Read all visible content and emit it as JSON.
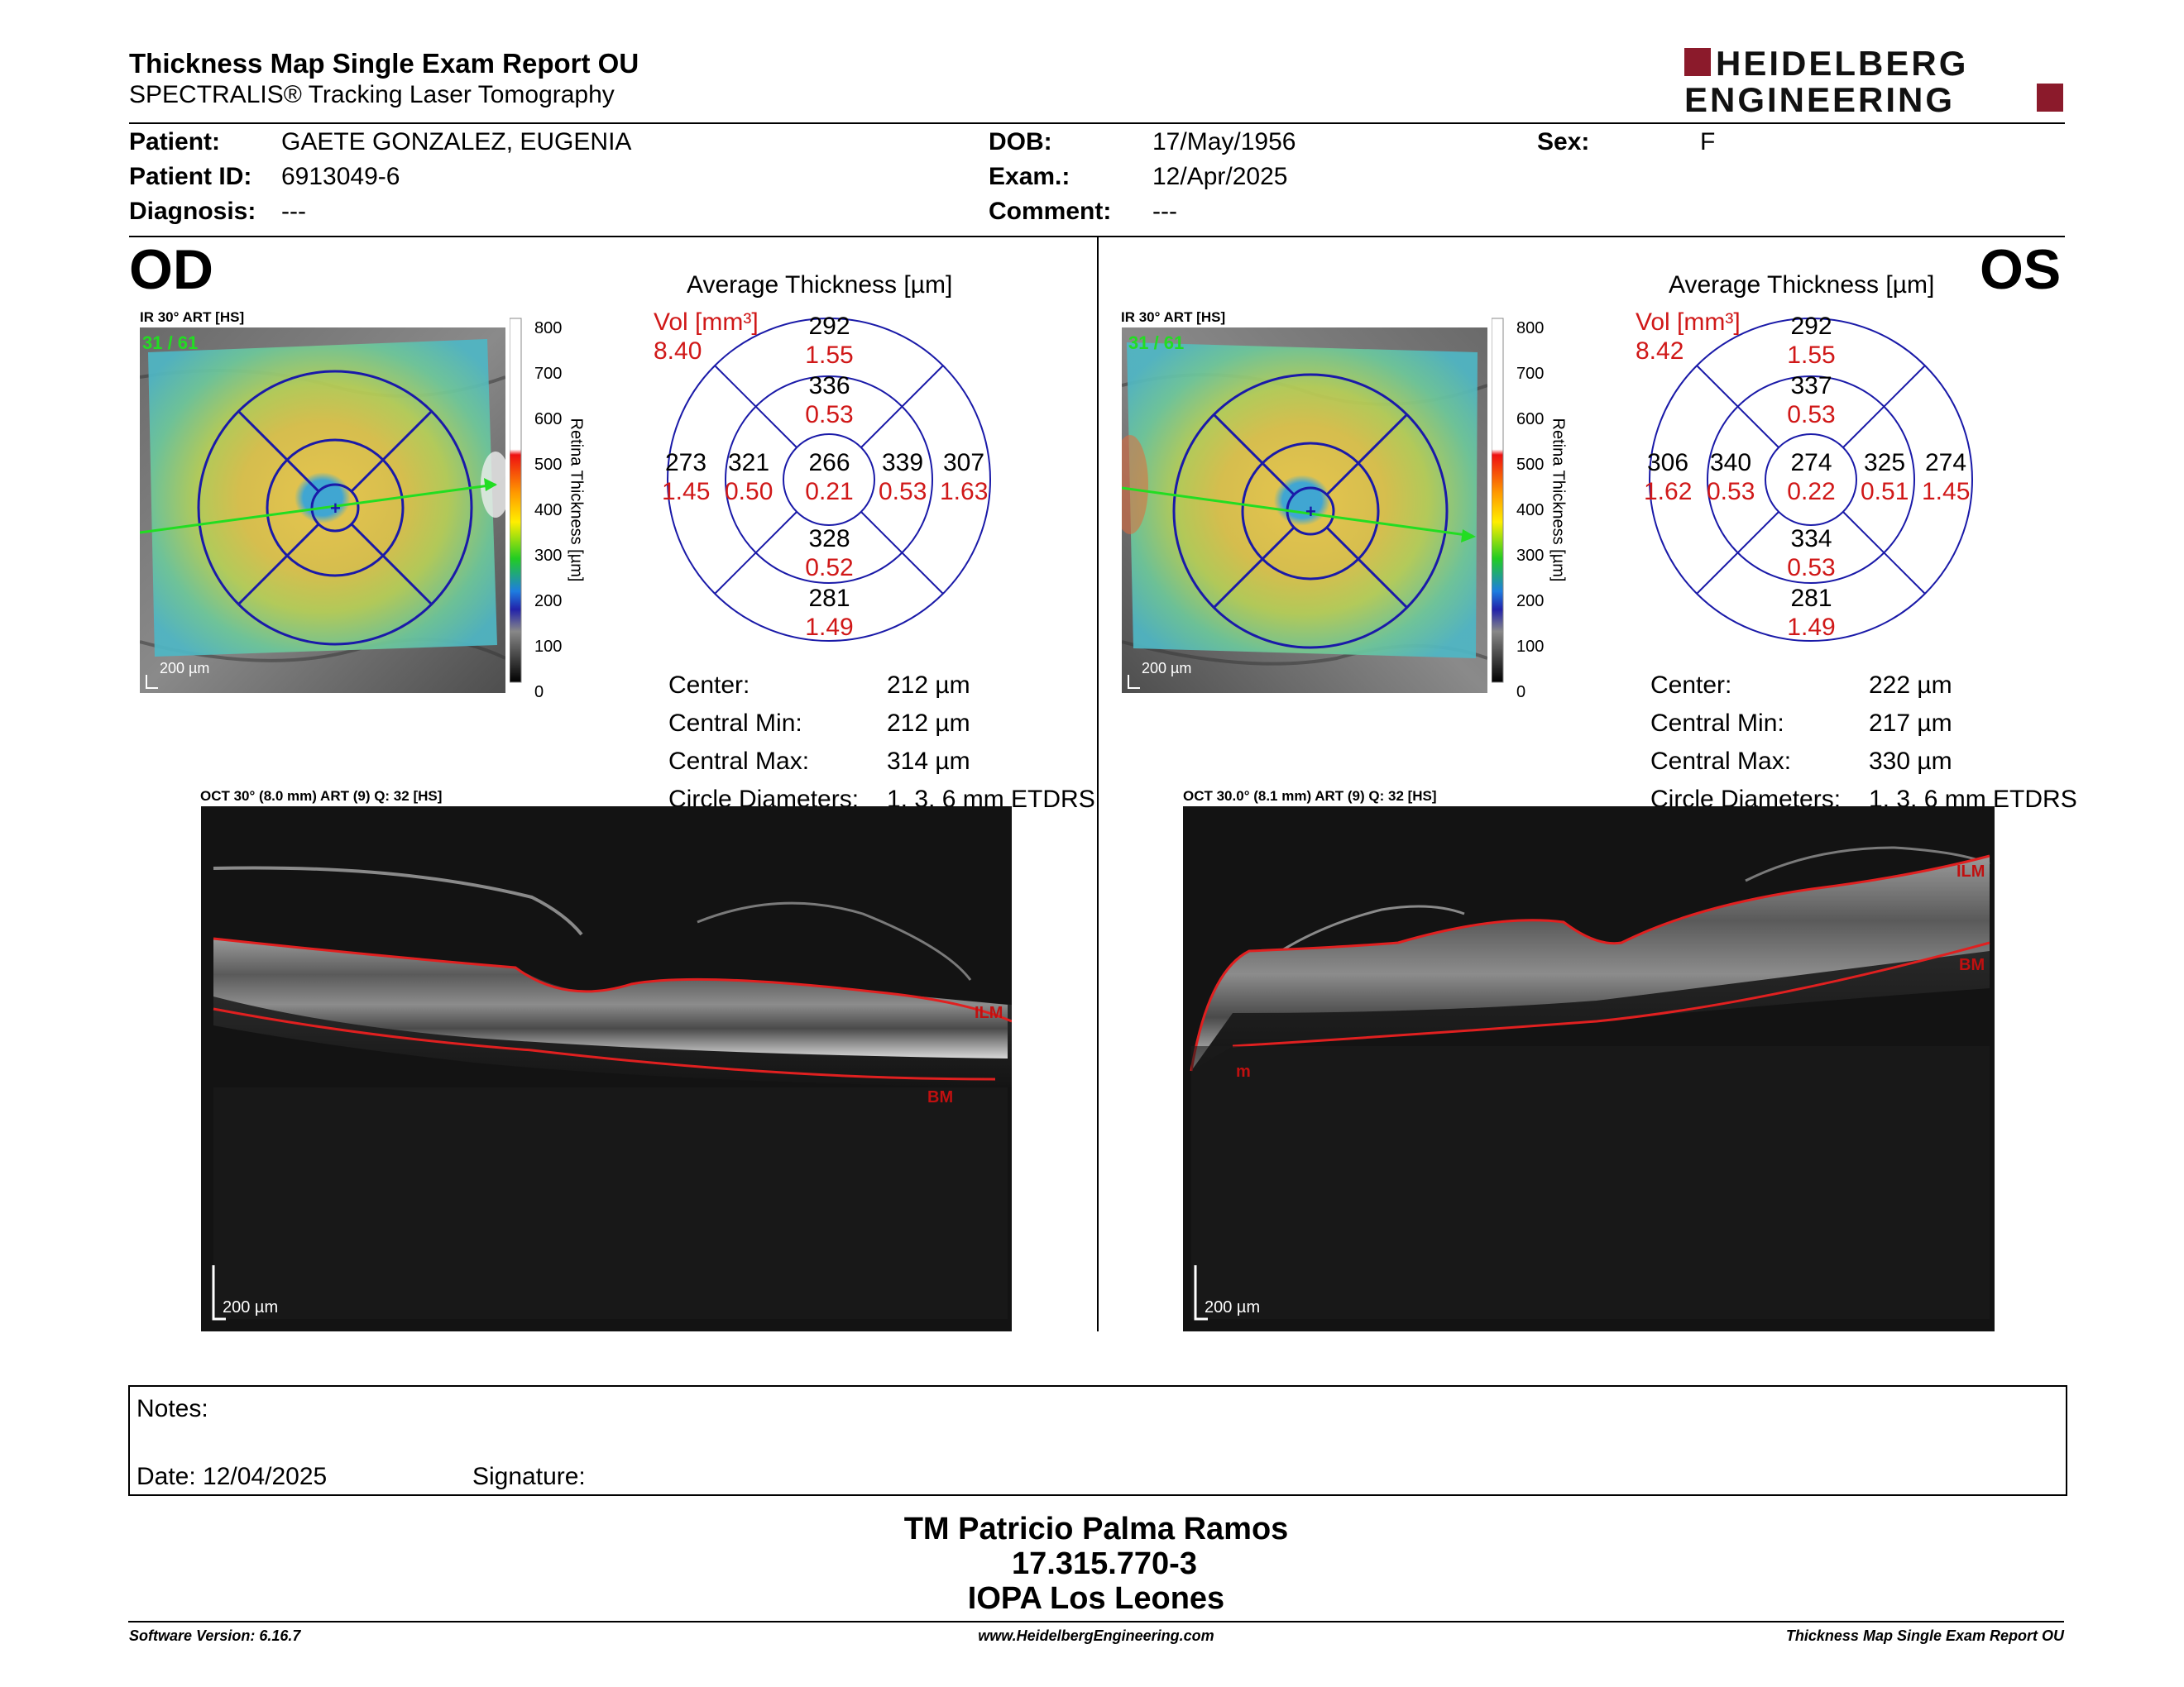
{
  "header": {
    "title": "Thickness Map Single Exam Report OU",
    "subtitle": "SPECTRALIS® Tracking Laser Tomography",
    "logo_line1": "HEIDELBERG",
    "logo_line2": "ENGINEERING",
    "logo_color": "#8b1a2b"
  },
  "patient": {
    "patient_label": "Patient:",
    "patient_value": "GAETE GONZALEZ, EUGENIA",
    "id_label": "Patient ID:",
    "id_value": "6913049-6",
    "diag_label": "Diagnosis:",
    "diag_value": "---",
    "dob_label": "DOB:",
    "dob_value": "17/May/1956",
    "exam_label": "Exam.:",
    "exam_value": "12/Apr/2025",
    "comment_label": "Comment:",
    "comment_value": "---",
    "sex_label": "Sex:",
    "sex_value": "F"
  },
  "colorbar": {
    "ticks": [
      "800",
      "700",
      "600",
      "500",
      "400",
      "300",
      "200",
      "100",
      "0"
    ],
    "label": "Retina  Thickness [µm]"
  },
  "od": {
    "eye": "OD",
    "ir_caption": "IR 30° ART [HS]",
    "ir_count": "31 / 61",
    "ir_scale": "200 µm",
    "avg_title": "Average Thickness [µm]",
    "vol_label": "Vol [mm³]",
    "vol_value": "8.40",
    "sectors": {
      "outer_sup": "292",
      "outer_sup_vol": "1.55",
      "inner_sup": "336",
      "inner_sup_vol": "0.53",
      "outer_left": "273",
      "outer_left_vol": "1.45",
      "inner_left": "321",
      "inner_left_vol": "0.50",
      "center": "266",
      "center_vol": "0.21",
      "inner_right": "339",
      "inner_right_vol": "0.53",
      "outer_right": "307",
      "outer_right_vol": "1.63",
      "inner_inf": "328",
      "inner_inf_vol": "0.52",
      "outer_inf": "281",
      "outer_inf_vol": "1.49"
    },
    "stats": [
      {
        "label": "Center:",
        "value": "212 µm"
      },
      {
        "label": "Central Min:",
        "value": "212 µm"
      },
      {
        "label": "Central Max:",
        "value": "314 µm"
      },
      {
        "label": "Circle Diameters:",
        "value": "1, 3, 6 mm ETDRS"
      }
    ],
    "oct_caption": "OCT 30° (8.0 mm) ART (9) Q: 32 [HS]",
    "oct_scale": "200 µm",
    "ilm_label": "ILM",
    "bm_label": "BM"
  },
  "os": {
    "eye": "OS",
    "ir_caption": "IR 30° ART [HS]",
    "ir_count": "31 / 61",
    "ir_scale": "200 µm",
    "avg_title": "Average Thickness [µm]",
    "vol_label": "Vol [mm³]",
    "vol_value": "8.42",
    "sectors": {
      "outer_sup": "292",
      "outer_sup_vol": "1.55",
      "inner_sup": "337",
      "inner_sup_vol": "0.53",
      "outer_left": "306",
      "outer_left_vol": "1.62",
      "inner_left": "340",
      "inner_left_vol": "0.53",
      "center": "274",
      "center_vol": "0.22",
      "inner_right": "325",
      "inner_right_vol": "0.51",
      "outer_right": "274",
      "outer_right_vol": "1.45",
      "inner_inf": "334",
      "inner_inf_vol": "0.53",
      "outer_inf": "281",
      "outer_inf_vol": "1.49"
    },
    "stats": [
      {
        "label": "Center:",
        "value": "222 µm"
      },
      {
        "label": "Central Min:",
        "value": "217 µm"
      },
      {
        "label": "Central Max:",
        "value": "330 µm"
      },
      {
        "label": "Circle Diameters:",
        "value": "1, 3, 6 mm ETDRS"
      }
    ],
    "oct_caption": "OCT 30.0° (8.1 mm) ART (9) Q: 32 [HS]",
    "oct_scale": "200 µm",
    "ilm_label": "ILM",
    "bm_label": "BM",
    "m_label": "m"
  },
  "notes": {
    "notes_label": "Notes:",
    "date_label": "Date: 12/04/2025",
    "signature_label": "Signature:"
  },
  "signatory": {
    "name": "TM Patricio Palma Ramos",
    "id": "17.315.770-3",
    "institution": "IOPA Los Leones"
  },
  "footer": {
    "software": "Software Version: 6.16.7",
    "website": "www.HeidelbergEngineering.com",
    "report": "Thickness Map Single Exam Report OU"
  }
}
